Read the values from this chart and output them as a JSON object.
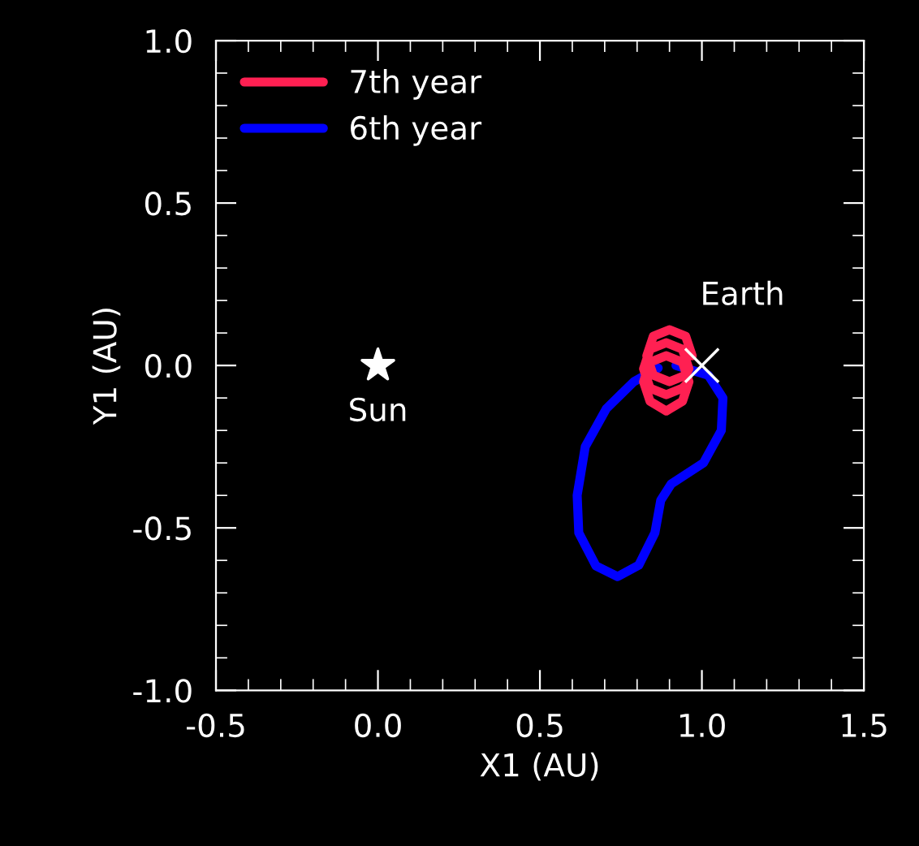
{
  "chart_data": {
    "type": "line",
    "xlabel": "X1 (AU)",
    "ylabel": "Y1 (AU)",
    "xlim": [
      -0.5,
      1.5
    ],
    "ylim": [
      -1.0,
      1.0
    ],
    "xticks": [
      -0.5,
      {
        "value": 0,
        "label": "0.0"
      },
      0.5,
      {
        "value": 1,
        "label": "1.0"
      },
      1.5
    ],
    "yticks": [
      {
        "value": -1,
        "label": "-1.0"
      },
      -0.5,
      {
        "value": 0,
        "label": "0.0"
      },
      0.5,
      {
        "value": 1,
        "label": "1.0"
      }
    ],
    "grid": false,
    "legend": "top left",
    "marker": "none",
    "line_style": "solid",
    "series": [
      {
        "name": "7th year",
        "color": "#ff2052",
        "x": [
          0.97,
          0.95,
          0.9,
          0.85,
          0.83,
          0.85,
          0.9,
          0.95,
          0.96,
          0.94,
          0.89,
          0.84,
          0.82,
          0.84,
          0.89,
          0.94,
          0.96,
          0.94,
          0.89,
          0.84,
          0.82,
          0.84,
          0.89,
          0.94,
          0.96
        ],
        "values": [
          0.03,
          0.09,
          0.11,
          0.09,
          0.03,
          -0.03,
          -0.05,
          -0.03,
          -0.01,
          0.05,
          0.07,
          0.05,
          -0.01,
          -0.07,
          -0.09,
          -0.07,
          -0.05,
          0.01,
          0.03,
          0.01,
          -0.05,
          -0.11,
          -0.14,
          -0.11,
          -0.05
        ]
      },
      {
        "name": "6th year",
        "color": "#0000ff",
        "x": [
          0.92,
          1.02,
          1.065,
          1.06,
          1.005,
          0.905,
          0.873,
          0.855,
          0.805,
          0.74,
          0.673,
          0.62,
          0.615,
          0.64,
          0.705,
          0.79,
          0.865
        ],
        "values": [
          0.0,
          -0.03,
          -0.1,
          -0.2,
          -0.3,
          -0.365,
          -0.415,
          -0.515,
          -0.615,
          -0.65,
          -0.617,
          -0.515,
          -0.4,
          -0.25,
          -0.133,
          -0.05,
          -0.008
        ]
      },
      {
        "type": "scatter",
        "marker": "star",
        "color": "#ffffff",
        "x": [
          0.0
        ],
        "values": [
          0.0
        ]
      },
      {
        "type": "scatter",
        "marker": "cross",
        "color": "#ffffff",
        "x": [
          1.0
        ],
        "values": [
          0.0
        ]
      }
    ],
    "annotations": [
      {
        "text": "Sun",
        "x": 0.0,
        "y": 0.0
      },
      {
        "text": "Earth",
        "x": 1.0,
        "y": 0.0
      }
    ]
  }
}
